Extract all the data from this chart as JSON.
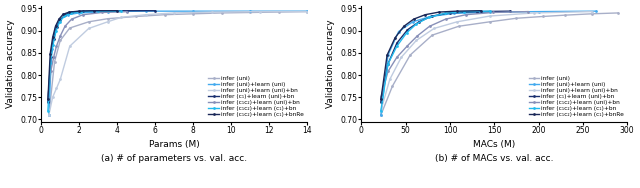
{
  "legend_labels": [
    "infer (uni)",
    "infer (uni)+learn (uni)",
    "infer (uni)+learn (uni)+bn",
    "infer (c₁)+learn (uni)+bn",
    "infer (c₁c₂)+learn (uni)+bn",
    "infer (c₁c₂)+learn (c₁)+bn",
    "infer (c₁c₂)+learn (c₁)+bnRe"
  ],
  "colors": [
    "#a8afc8",
    "#44aaee",
    "#c0cce0",
    "#1a3070",
    "#8890b8",
    "#22bbee",
    "#1a2858"
  ],
  "left_xlabel": "Params (M)",
  "left_ylabel": "Validation accuracy",
  "left_title": "(a) # of parameters vs. val. acc.",
  "left_xlim": [
    0,
    14
  ],
  "left_ylim": [
    0.695,
    0.955
  ],
  "left_xticks": [
    0,
    2,
    4,
    6,
    8,
    10,
    12,
    14
  ],
  "left_yticks": [
    0.7,
    0.75,
    0.8,
    0.85,
    0.9,
    0.95
  ],
  "right_xlabel": "MACs (M)",
  "right_ylabel": "Validation accuracy",
  "right_title": "(b) # of MACs vs. val. acc.",
  "right_xlim": [
    0,
    300
  ],
  "right_ylim": [
    0.695,
    0.955
  ],
  "right_xticks": [
    0,
    50,
    100,
    150,
    200,
    250,
    300
  ],
  "right_yticks": [
    0.7,
    0.75,
    0.8,
    0.85,
    0.9,
    0.95
  ],
  "curves_left": [
    {
      "x": [
        0.4,
        0.7,
        1.0,
        1.5,
        2.5,
        3.5,
        5.0,
        6.5,
        8.0,
        9.5,
        11.0,
        12.5,
        14.0
      ],
      "y": [
        0.71,
        0.83,
        0.878,
        0.906,
        0.92,
        0.927,
        0.932,
        0.936,
        0.938,
        0.94,
        0.941,
        0.942,
        0.943
      ]
    },
    {
      "x": [
        0.4,
        0.55,
        0.75,
        1.0,
        1.4,
        2.0,
        3.5,
        5.5,
        8.0,
        11.0,
        14.0
      ],
      "y": [
        0.71,
        0.858,
        0.908,
        0.926,
        0.936,
        0.94,
        0.943,
        0.944,
        0.944,
        0.944,
        0.944
      ]
    },
    {
      "x": [
        0.4,
        0.6,
        0.8,
        1.0,
        1.5,
        2.5,
        3.5,
        4.2,
        5.5,
        7.0,
        9.0,
        11.5,
        14.0
      ],
      "y": [
        0.71,
        0.75,
        0.77,
        0.79,
        0.865,
        0.905,
        0.92,
        0.93,
        0.936,
        0.94,
        0.942,
        0.943,
        0.943
      ]
    },
    {
      "x": [
        0.35,
        0.5,
        0.65,
        0.82,
        1.0,
        1.25,
        1.6,
        2.2,
        3.2,
        4.5,
        6.0
      ],
      "y": [
        0.74,
        0.84,
        0.882,
        0.908,
        0.924,
        0.936,
        0.942,
        0.944,
        0.945,
        0.945,
        0.945
      ]
    },
    {
      "x": [
        0.35,
        0.5,
        0.65,
        0.8,
        1.0,
        1.25,
        1.6,
        2.2,
        3.2,
        4.5
      ],
      "y": [
        0.75,
        0.808,
        0.84,
        0.865,
        0.888,
        0.91,
        0.926,
        0.936,
        0.941,
        0.943
      ]
    },
    {
      "x": [
        0.35,
        0.48,
        0.62,
        0.78,
        0.97,
        1.2,
        1.55,
        2.1,
        3.0,
        4.2
      ],
      "y": [
        0.72,
        0.828,
        0.868,
        0.9,
        0.92,
        0.932,
        0.94,
        0.943,
        0.944,
        0.944
      ]
    },
    {
      "x": [
        0.35,
        0.47,
        0.6,
        0.75,
        0.93,
        1.15,
        1.48,
        2.0,
        2.8,
        4.0
      ],
      "y": [
        0.745,
        0.848,
        0.885,
        0.91,
        0.926,
        0.937,
        0.942,
        0.944,
        0.945,
        0.945
      ]
    }
  ],
  "curves_right": [
    {
      "x": [
        22,
        35,
        55,
        80,
        110,
        145,
        175,
        205,
        230,
        260,
        290
      ],
      "y": [
        0.71,
        0.775,
        0.845,
        0.89,
        0.91,
        0.92,
        0.928,
        0.932,
        0.935,
        0.938,
        0.94
      ]
    },
    {
      "x": [
        22,
        30,
        42,
        58,
        78,
        105,
        145,
        200,
        265
      ],
      "y": [
        0.71,
        0.845,
        0.898,
        0.92,
        0.932,
        0.939,
        0.942,
        0.943,
        0.944
      ]
    },
    {
      "x": [
        22,
        32,
        45,
        62,
        82,
        108,
        145,
        195,
        260
      ],
      "y": [
        0.72,
        0.79,
        0.84,
        0.878,
        0.905,
        0.92,
        0.933,
        0.94,
        0.943
      ]
    },
    {
      "x": [
        22,
        30,
        40,
        52,
        65,
        80,
        100,
        130,
        168
      ],
      "y": [
        0.74,
        0.825,
        0.872,
        0.902,
        0.92,
        0.933,
        0.94,
        0.943,
        0.944
      ]
    },
    {
      "x": [
        22,
        30,
        40,
        52,
        63,
        77,
        95,
        118,
        148,
        188
      ],
      "y": [
        0.75,
        0.808,
        0.84,
        0.866,
        0.888,
        0.91,
        0.926,
        0.936,
        0.941,
        0.943
      ]
    },
    {
      "x": [
        22,
        30,
        40,
        51,
        62,
        76,
        94,
        116,
        145
      ],
      "y": [
        0.72,
        0.825,
        0.865,
        0.895,
        0.915,
        0.93,
        0.939,
        0.943,
        0.944
      ]
    },
    {
      "x": [
        22,
        29,
        38,
        48,
        59,
        72,
        88,
        108,
        135
      ],
      "y": [
        0.745,
        0.845,
        0.884,
        0.91,
        0.926,
        0.936,
        0.942,
        0.944,
        0.945
      ]
    }
  ]
}
